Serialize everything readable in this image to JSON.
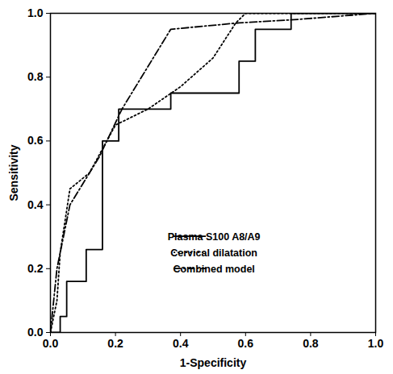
{
  "chart_data": {
    "type": "line",
    "x_label": "1-Specificity",
    "y_label": "Sensitivity",
    "xlim": [
      0,
      1
    ],
    "ylim": [
      0,
      1
    ],
    "xticks": [
      {
        "value": 0,
        "label": "0.0"
      },
      {
        "value": 0.2,
        "label": "0.2"
      },
      {
        "value": 0.4,
        "label": "0.4"
      },
      {
        "value": 0.6,
        "label": "0.6"
      },
      {
        "value": 0.8,
        "label": "0.8"
      },
      {
        "value": 1,
        "label": "1.0"
      }
    ],
    "yticks": [
      {
        "value": 0,
        "label": "0.0"
      },
      {
        "value": 0.2,
        "label": "0.2"
      },
      {
        "value": 0.4,
        "label": "0.4"
      },
      {
        "value": 0.6,
        "label": "0.6"
      },
      {
        "value": 0.8,
        "label": "0.8"
      },
      {
        "value": 1,
        "label": "1.0"
      }
    ],
    "grid": false,
    "legend": "lower right",
    "series": [
      {
        "name": "Plasma S100 A8/A9",
        "color": "#000000",
        "line_style": "solid",
        "x": [
          0,
          0.03,
          0.03,
          0.05,
          0.05,
          0.11,
          0.11,
          0.16,
          0.16,
          0.21,
          0.21,
          0.37,
          0.37,
          0.58,
          0.58,
          0.63,
          0.63,
          0.74,
          0.74,
          1
        ],
        "values": [
          0,
          0,
          0.05,
          0.05,
          0.16,
          0.16,
          0.26,
          0.26,
          0.6,
          0.6,
          0.7,
          0.7,
          0.75,
          0.75,
          0.85,
          0.85,
          0.95,
          0.95,
          1,
          1
        ]
      },
      {
        "name": "Cervical dilatation",
        "color": "#000000",
        "line_style": "dotted",
        "x": [
          0,
          0.02,
          0.03,
          0.06,
          0.12,
          0.2,
          0.3,
          0.4,
          0.5,
          0.57,
          0.6,
          1
        ],
        "values": [
          0,
          0.1,
          0.25,
          0.45,
          0.5,
          0.65,
          0.7,
          0.77,
          0.86,
          0.97,
          1,
          1
        ]
      },
      {
        "name": "Combined model",
        "color": "#000000",
        "line_style": "dashdot",
        "x": [
          0,
          0.02,
          0.06,
          0.15,
          0.22,
          0.37,
          0.58,
          0.75,
          1
        ],
        "values": [
          0,
          0.2,
          0.4,
          0.55,
          0.7,
          0.95,
          0.97,
          0.98,
          1
        ]
      }
    ]
  }
}
